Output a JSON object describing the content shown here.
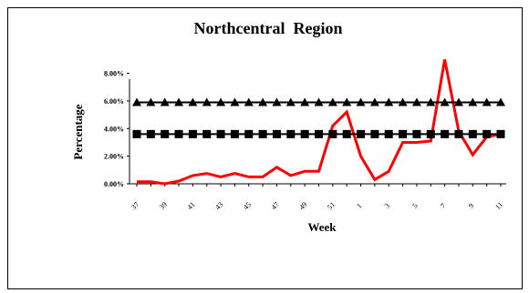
{
  "chart_data": {
    "type": "line",
    "title": "Northcentral  Region",
    "xlabel": "Week",
    "ylabel": "Percentage",
    "ylim": [
      0,
      8.5
    ],
    "yticks": [
      0,
      2,
      4,
      6,
      8
    ],
    "ytick_labels": [
      "0.00%",
      "2.00%",
      "4.00%",
      "6.00%",
      "8.00%"
    ],
    "categories": [
      "37",
      "38",
      "39",
      "40",
      "41",
      "42",
      "43",
      "44",
      "45",
      "46",
      "47",
      "48",
      "49",
      "50",
      "51",
      "52",
      "1",
      "2",
      "3",
      "4",
      "5",
      "6",
      "7",
      "8",
      "9",
      "10",
      "11"
    ],
    "xtick_labels": [
      "37",
      "",
      "39",
      "",
      "41",
      "",
      "43",
      "",
      "45",
      "",
      "47",
      "",
      "49",
      "",
      "51",
      "",
      "1",
      "",
      "3",
      "",
      "5",
      "",
      "7",
      "",
      "9",
      "",
      "11"
    ],
    "grid": false,
    "legend": "none",
    "series": [
      {
        "marker": "line",
        "color": "#ff0000",
        "values": [
          0.15,
          0.15,
          0.0,
          0.2,
          0.6,
          0.75,
          0.5,
          0.75,
          0.5,
          0.5,
          1.2,
          0.6,
          0.9,
          0.9,
          4.2,
          5.2,
          2.0,
          0.3,
          0.9,
          3.0,
          3.0,
          3.1,
          9.0,
          3.8,
          2.1,
          3.4,
          3.6
        ]
      },
      {
        "marker": "triangle",
        "color": "#000000",
        "values": [
          5.9,
          5.9,
          5.9,
          5.9,
          5.9,
          5.9,
          5.9,
          5.9,
          5.9,
          5.9,
          5.9,
          5.9,
          5.9,
          5.9,
          5.9,
          5.9,
          5.9,
          5.9,
          5.9,
          5.9,
          5.9,
          5.9,
          5.9,
          5.9,
          5.9,
          5.9,
          5.9
        ]
      },
      {
        "marker": "square",
        "color": "#000000",
        "values": [
          3.6,
          3.6,
          3.6,
          3.6,
          3.6,
          3.6,
          3.6,
          3.6,
          3.6,
          3.6,
          3.6,
          3.6,
          3.6,
          3.6,
          3.6,
          3.6,
          3.6,
          3.6,
          3.6,
          3.6,
          3.6,
          3.6,
          3.6,
          3.6,
          3.6,
          3.6,
          3.6
        ]
      }
    ]
  }
}
